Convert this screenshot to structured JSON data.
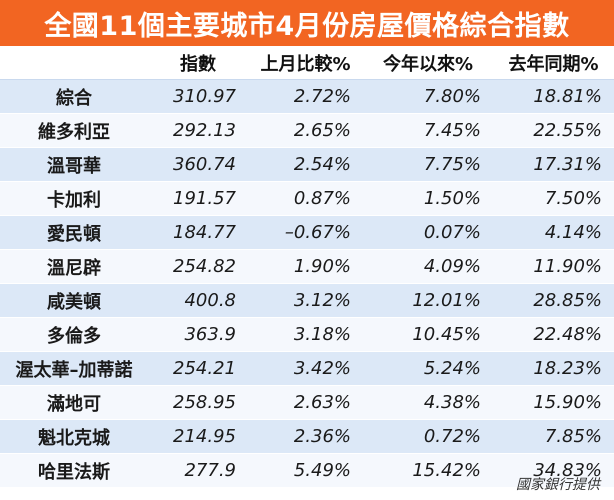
{
  "title": "全國11個主要城市4月份房屋價格綜合指數",
  "columns": [
    "",
    "指數",
    "上月比較%",
    "今年以來%",
    "去年同期%"
  ],
  "rows": [
    {
      "city": "綜合",
      "index": "310.97",
      "mom": "2.72%",
      "ytd": "7.80%",
      "yoy": "18.81%"
    },
    {
      "city": "維多利亞",
      "index": "292.13",
      "mom": "2.65%",
      "ytd": "7.45%",
      "yoy": "22.55%"
    },
    {
      "city": "溫哥華",
      "index": "360.74",
      "mom": "2.54%",
      "ytd": "7.75%",
      "yoy": "17.31%"
    },
    {
      "city": "卡加利",
      "index": "191.57",
      "mom": "0.87%",
      "ytd": "1.50%",
      "yoy": "7.50%"
    },
    {
      "city": "愛民頓",
      "index": "184.77",
      "mom": "–0.67%",
      "ytd": "0.07%",
      "yoy": "4.14%"
    },
    {
      "city": "溫尼辟",
      "index": "254.82",
      "mom": "1.90%",
      "ytd": "4.09%",
      "yoy": "11.90%"
    },
    {
      "city": "咸美頓",
      "index": "400.8",
      "mom": "3.12%",
      "ytd": "12.01%",
      "yoy": "28.85%"
    },
    {
      "city": "多倫多",
      "index": "363.9",
      "mom": "3.18%",
      "ytd": "10.45%",
      "yoy": "22.48%"
    },
    {
      "city": "渥太華–加蒂諾",
      "index": "254.21",
      "mom": "3.42%",
      "ytd": "5.24%",
      "yoy": "18.23%"
    },
    {
      "city": "滿地可",
      "index": "258.95",
      "mom": "2.63%",
      "ytd": "4.38%",
      "yoy": "15.90%"
    },
    {
      "city": "魁北克城",
      "index": "214.95",
      "mom": "2.36%",
      "ytd": "0.72%",
      "yoy": "7.85%"
    },
    {
      "city": "哈里法斯",
      "index": "277.9",
      "mom": "5.49%",
      "ytd": "15.42%",
      "yoy": "34.83%"
    }
  ],
  "source": "國家銀行提供",
  "colors": {
    "title_bar": "#f26522",
    "row_band_a": "#dce8f7",
    "row_band_b": "#f5f8fd"
  }
}
